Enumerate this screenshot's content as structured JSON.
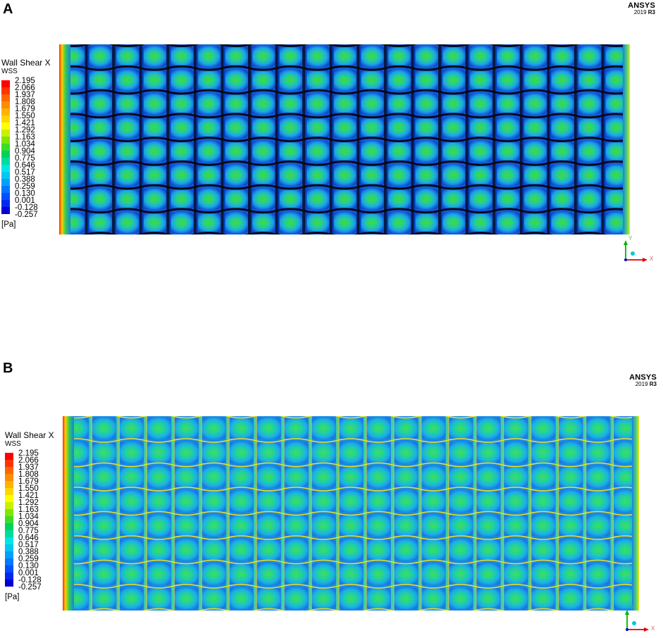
{
  "panels": [
    {
      "letter": "A",
      "brand": "ANSYS",
      "version_year": "2019",
      "version_release": "R3",
      "legend_title": "Wall Shear X",
      "legend_subtitle": "WSS",
      "legend_unit": "[Pa]",
      "legend_values": [
        "2.195",
        "2.066",
        "1.937",
        "1.808",
        "1.679",
        "1.550",
        "1.421",
        "1.292",
        "1.163",
        "1.034",
        "0.904",
        "0.775",
        "0.646",
        "0.517",
        "0.388",
        "0.259",
        "0.130",
        "0.001",
        "-0.128",
        "-0.257"
      ],
      "axis_x": "X",
      "axis_y": "Y",
      "mesh_style": "dark"
    },
    {
      "letter": "B",
      "brand": "ANSYS",
      "version_year": "2019",
      "version_release": "R3",
      "legend_title": "Wall Shear X",
      "legend_subtitle": "WSS",
      "legend_unit": "[Pa]",
      "legend_values": [
        "2.195",
        "2.066",
        "1.937",
        "1.808",
        "1.679",
        "1.550",
        "1.421",
        "1.292",
        "1.163",
        "1.034",
        "0.904",
        "0.775",
        "0.646",
        "0.517",
        "0.388",
        "0.259",
        "0.130",
        "0.001",
        "-0.128",
        "-0.257"
      ],
      "axis_x": "X",
      "axis_y": "Y",
      "mesh_style": "light"
    }
  ],
  "colormap": [
    "#ff0000",
    "#ff3300",
    "#ff6600",
    "#ff8c00",
    "#ffb300",
    "#ffd700",
    "#ffff00",
    "#c8f000",
    "#7fe600",
    "#3cdc28",
    "#00d25a",
    "#00dca0",
    "#00e6e6",
    "#00c8f0",
    "#00a0ff",
    "#0078ff",
    "#0050ff",
    "#0028f0",
    "#0000d2"
  ]
}
